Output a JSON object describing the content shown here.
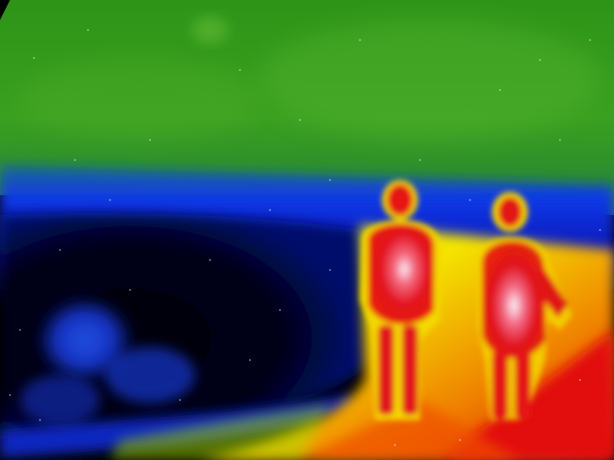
{
  "image": {
    "kind": "thermal-camera-photo",
    "palette": "rainbow",
    "subjects": [
      "person-left",
      "person-right"
    ],
    "colors": {
      "sky_green": "#2f9a1a",
      "horizon_blue": "#1030e0",
      "cold_black": "#000010",
      "warm_yellow": "#f0e000",
      "hot_red": "#e00010",
      "hottest_white": "#f8e8f0"
    }
  }
}
